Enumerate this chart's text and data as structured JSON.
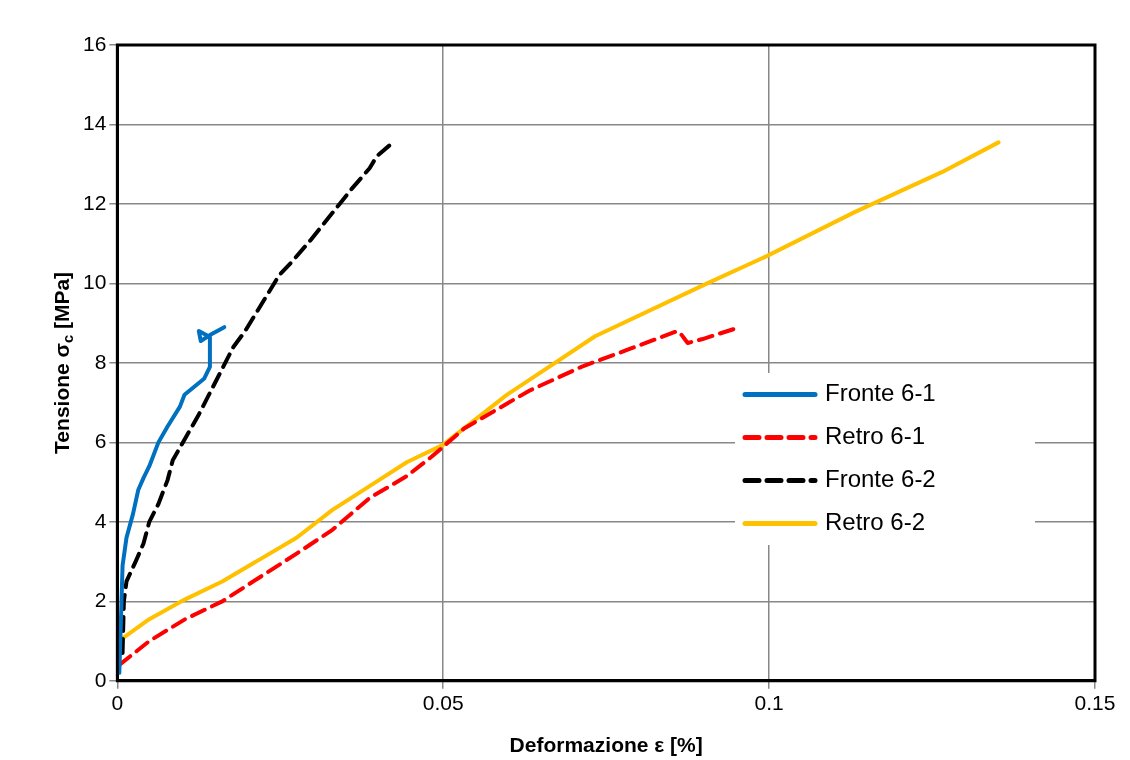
{
  "chart_data": {
    "type": "line",
    "xlabel": "Deformazione ε [%]",
    "ylabel": "Tensione σ$_{c}$ [MPa]",
    "xlim": [
      0,
      0.15
    ],
    "xticks": [
      0,
      0.05,
      0.1,
      0.15
    ],
    "ylim": [
      0,
      16
    ],
    "yticks": [
      0,
      2,
      4,
      6,
      8,
      10,
      12,
      14,
      16
    ],
    "grid": true,
    "legend": "right",
    "marker": "none",
    "series": [
      {
        "name": "Fronte 6-1",
        "color": "#0070c0",
        "line_style": "solid",
        "x": [
          0.0003,
          0.0008,
          0.0014,
          0.0024,
          0.0032,
          0.004,
          0.0049,
          0.0063,
          0.0077,
          0.0096,
          0.0103,
          0.0133,
          0.0142,
          0.0142,
          0.0125,
          0.0128,
          0.0142,
          0.0164
        ],
        "values": [
          0.2,
          2.9,
          3.6,
          4.2,
          4.8,
          5.1,
          5.4,
          6.0,
          6.4,
          6.9,
          7.2,
          7.6,
          7.9,
          8.65,
          8.8,
          8.55,
          8.7,
          8.9
        ]
      },
      {
        "name": "Retro 6-1",
        "color": "#ff0000",
        "line_style": "dashed",
        "x": [
          0.0003,
          0.0049,
          0.0104,
          0.0161,
          0.0218,
          0.0275,
          0.033,
          0.0387,
          0.0444,
          0.0483,
          0.0532,
          0.0632,
          0.0712,
          0.0786,
          0.0859,
          0.0866,
          0.0875,
          0.0898,
          0.0955
        ],
        "values": [
          0.4,
          1.0,
          1.55,
          2.0,
          2.6,
          3.2,
          3.8,
          4.6,
          5.15,
          5.65,
          6.35,
          7.3,
          7.9,
          8.35,
          8.8,
          8.7,
          8.5,
          8.6,
          8.9
        ]
      },
      {
        "name": "Fronte 6-2",
        "color": "#000000",
        "line_style": "dashed",
        "x": [
          0.0008,
          0.001,
          0.0014,
          0.0028,
          0.004,
          0.0049,
          0.0063,
          0.0077,
          0.0085,
          0.0125,
          0.0139,
          0.0178,
          0.0196,
          0.0248,
          0.0268,
          0.0297,
          0.0314,
          0.0341,
          0.0358,
          0.0387,
          0.0398,
          0.0423
        ],
        "values": [
          0.7,
          2.0,
          2.5,
          3.0,
          3.45,
          4.0,
          4.45,
          5.05,
          5.55,
          6.7,
          7.15,
          8.4,
          8.8,
          10.2,
          10.55,
          11.1,
          11.45,
          12.0,
          12.35,
          12.9,
          13.2,
          13.55
        ]
      },
      {
        "name": "Retro 6-2",
        "color": "#ffc000",
        "line_style": "solid",
        "x": [
          0.0002,
          0.0049,
          0.0104,
          0.0161,
          0.0218,
          0.0275,
          0.033,
          0.0387,
          0.0444,
          0.0499,
          0.0598,
          0.0733,
          0.0905,
          0.0998,
          0.1132,
          0.1265,
          0.1352
        ],
        "values": [
          1.0,
          1.55,
          2.05,
          2.5,
          3.05,
          3.6,
          4.3,
          4.9,
          5.5,
          5.93,
          7.2,
          8.67,
          10.0,
          10.7,
          11.8,
          12.8,
          13.55
        ]
      }
    ]
  }
}
